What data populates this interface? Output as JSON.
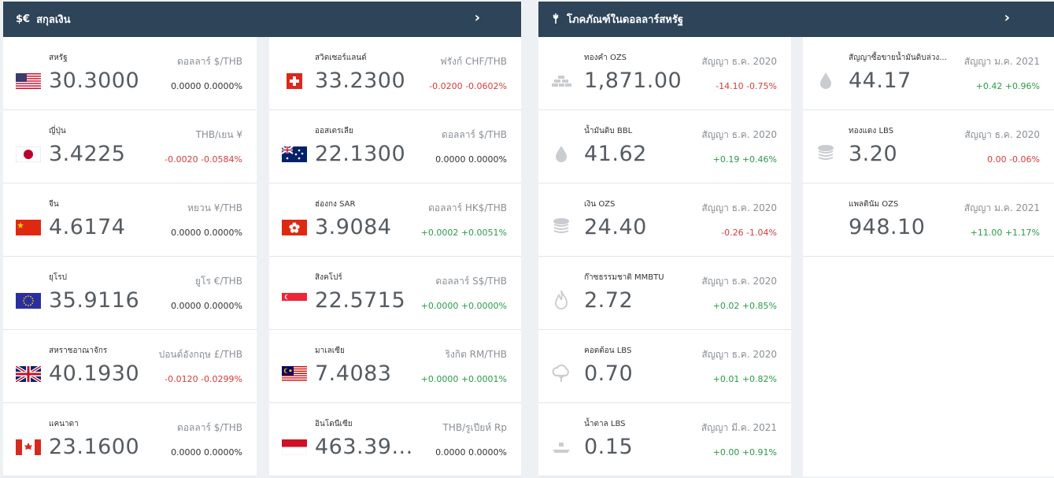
{
  "currency": {
    "title": "สกุลเงิน",
    "icon": "$€",
    "left": [
      {
        "name": "สหรัฐ",
        "value": "30.3000",
        "unit": "ดอลลาร์ $/THB",
        "change": "0.0000 0.0000%",
        "dir": "zero",
        "flag": "us"
      },
      {
        "name": "ญี่ปุ่น",
        "value": "3.4225",
        "unit": "THB/เยน ¥",
        "change": "-0.0020 -0.0584%",
        "dir": "neg",
        "flag": "jp"
      },
      {
        "name": "จีน",
        "value": "4.6174",
        "unit": "หยวน ¥/THB",
        "change": "0.0000 0.0000%",
        "dir": "zero",
        "flag": "cn"
      },
      {
        "name": "ยุโรป",
        "value": "35.9116",
        "unit": "ยูโร €/THB",
        "change": "0.0000 0.0000%",
        "dir": "zero",
        "flag": "eu"
      },
      {
        "name": "สหราชอาณาจักร",
        "value": "40.1930",
        "unit": "ปอนด์อังกฤษ £/THB",
        "change": "-0.0120 -0.0299%",
        "dir": "neg",
        "flag": "gb"
      },
      {
        "name": "แคนาดา",
        "value": "23.1600",
        "unit": "ดอลลาร์ $/THB",
        "change": "0.0000 0.0000%",
        "dir": "zero",
        "flag": "ca"
      }
    ],
    "right": [
      {
        "name": "สวิตเซอร์แลนด์",
        "value": "33.2300",
        "unit": "ฟรังก์ CHF/THB",
        "change": "-0.0200 -0.0602%",
        "dir": "neg",
        "flag": "ch"
      },
      {
        "name": "ออสเตรเลีย",
        "value": "22.1300",
        "unit": "ดอลลาร์ $/THB",
        "change": "0.0000 0.0000%",
        "dir": "zero",
        "flag": "au"
      },
      {
        "name": "ฮ่องกง SAR",
        "value": "3.9084",
        "unit": "ดอลลาร์ HK$/THB",
        "change": "+0.0002 +0.0051%",
        "dir": "pos",
        "flag": "hk"
      },
      {
        "name": "สิงคโปร์",
        "value": "22.5715",
        "unit": "ดอลลาร์ S$/THB",
        "change": "+0.0000 +0.0000%",
        "dir": "pos",
        "flag": "sg"
      },
      {
        "name": "มาเลเซีย",
        "value": "7.4083",
        "unit": "ริงกิต RM/THB",
        "change": "+0.0000 +0.0001%",
        "dir": "pos",
        "flag": "my"
      },
      {
        "name": "อินโดนีเซีย",
        "value": "463.39...",
        "unit": "THB/รูเปียห์ Rp",
        "change": "0.0000 0.0000%",
        "dir": "zero",
        "flag": "id"
      }
    ]
  },
  "commodities": {
    "title": "โภคภัณฑ์ในดอลลาร์สหรัฐ",
    "icon": "wheat-icon",
    "left": [
      {
        "name": "ทองคำ OZS",
        "value": "1,871.00",
        "unit": "สัญญา ธ.ค. 2020",
        "change": "-14.10 -0.75%",
        "dir": "neg",
        "icon": "gold-bars"
      },
      {
        "name": "น้ำมันดิบ BBL",
        "value": "41.62",
        "unit": "สัญญา ธ.ค. 2020",
        "change": "+0.19 +0.46%",
        "dir": "pos",
        "icon": "drop"
      },
      {
        "name": "เงิน OZS",
        "value": "24.40",
        "unit": "สัญญา ธ.ค. 2020",
        "change": "-0.26 -1.04%",
        "dir": "neg",
        "icon": "coins"
      },
      {
        "name": "ก๊าซธรรมชาติ MMBTU",
        "value": "2.72",
        "unit": "สัญญา ธ.ค. 2020",
        "change": "+0.02 +0.85%",
        "dir": "pos",
        "icon": "flame"
      },
      {
        "name": "คอตต้อน LBS",
        "value": "0.70",
        "unit": "สัญญา ธ.ค. 2020",
        "change": "+0.01 +0.82%",
        "dir": "pos",
        "icon": "cotton"
      },
      {
        "name": "น้ำตาล LBS",
        "value": "0.15",
        "unit": "สัญญา มี.ค. 2021",
        "change": "+0.00 +0.91%",
        "dir": "pos",
        "icon": "sugar"
      }
    ],
    "right": [
      {
        "name": "สัญญาซื้อขายน้ำมันดิบล่วง...",
        "value": "44.17",
        "unit": "สัญญา ม.ค. 2021",
        "change": "+0.42 +0.96%",
        "dir": "pos",
        "icon": "drop"
      },
      {
        "name": "ทองแดง LBS",
        "value": "3.20",
        "unit": "สัญญา ธ.ค. 2020",
        "change": "0.00 -0.06%",
        "dir": "neg",
        "icon": "coins"
      },
      {
        "name": "แพลตินัม OZS",
        "value": "948.10",
        "unit": "สัญญา ม.ค. 2021",
        "change": "+11.00 +1.17%",
        "dir": "pos",
        "icon": "none"
      }
    ]
  }
}
